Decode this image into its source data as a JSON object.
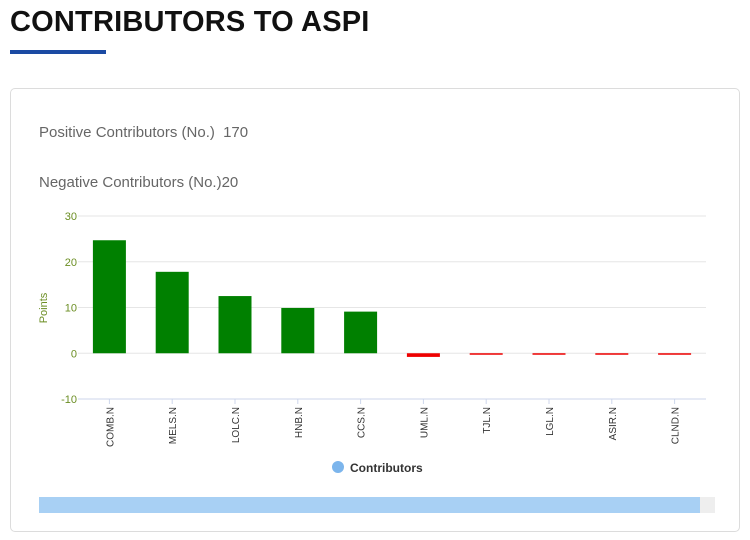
{
  "page": {
    "title": "CONTRIBUTORS TO ASPI"
  },
  "stats": {
    "positive_label": "Positive Contributors (No.)",
    "positive_value": "170",
    "negative_label": "Negative Contributors (No.)",
    "negative_value": "20"
  },
  "colors": {
    "positive": "#008000",
    "negative": "#ee0000",
    "legend": "#7cb5ec",
    "accent": "#1b4aa3"
  },
  "chart_data": {
    "type": "bar",
    "categories": [
      "COMB.N",
      "MELS.N",
      "LOLC.N",
      "HNB.N",
      "CCS.N",
      "UML.N",
      "TJL.N",
      "LGL.N",
      "ASIR.N",
      "CLND.N"
    ],
    "series": [
      {
        "name": "Contributors",
        "values": [
          24.7,
          17.8,
          12.5,
          9.9,
          9.1,
          -0.8,
          -0.3,
          -0.3,
          -0.3,
          -0.3
        ]
      }
    ],
    "ylabel": "Points",
    "ylim": [
      -10,
      30
    ],
    "yticks": [
      30,
      20,
      10,
      0,
      -10
    ],
    "grid": true,
    "legend_position": "bottom-center"
  }
}
